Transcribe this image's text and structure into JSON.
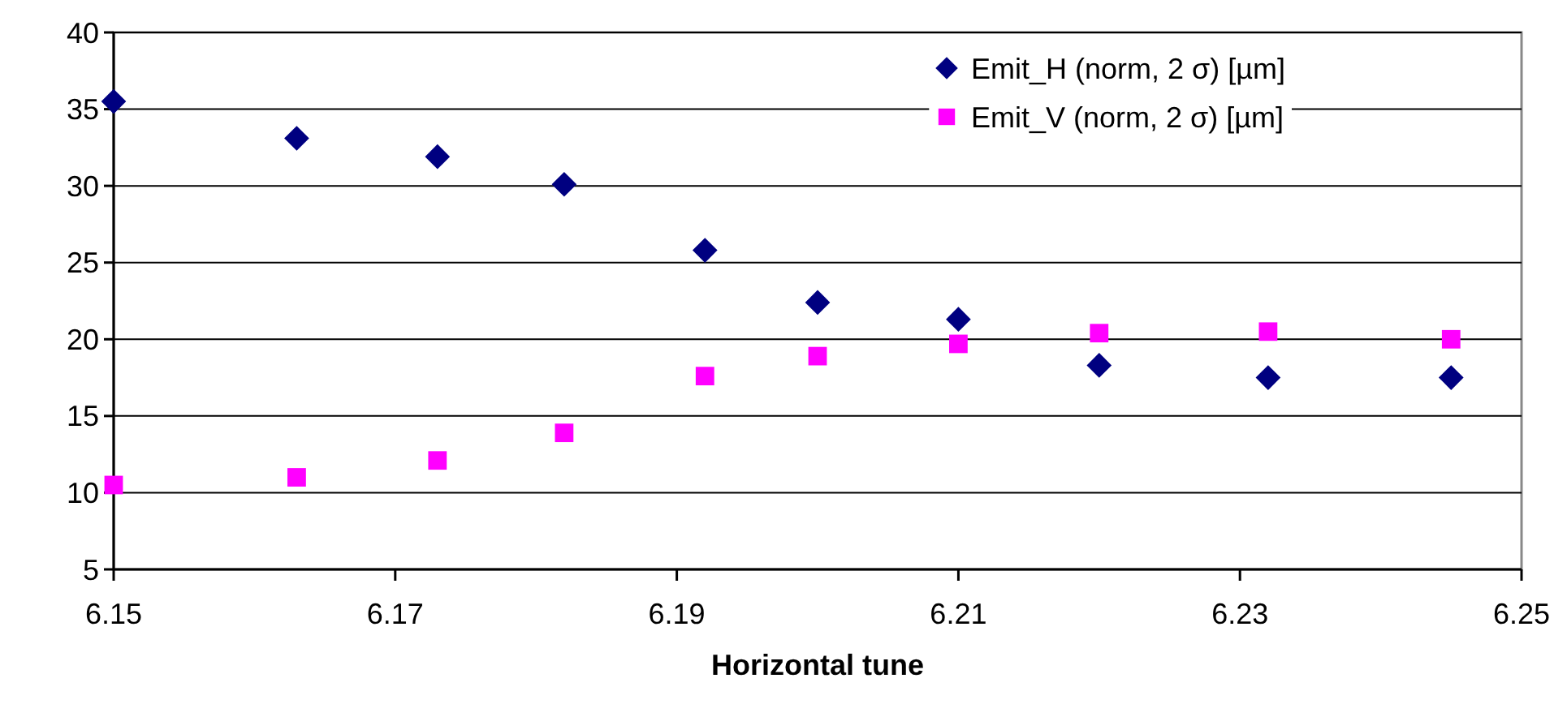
{
  "chart_data": {
    "type": "scatter",
    "xlabel": "Horizontal tune",
    "xlim": [
      6.15,
      6.25
    ],
    "xticks": [
      6.15,
      6.17,
      6.19,
      6.21,
      6.23,
      6.25
    ],
    "ylim": [
      5,
      40
    ],
    "yticks": [
      5,
      10,
      15,
      20,
      25,
      30,
      35,
      40
    ],
    "grid": "y",
    "legend": "top right",
    "series": [
      {
        "name": "Emit_H (norm, 2 σ) [µm]",
        "color": "#000080",
        "marker": "diamond",
        "x": [
          6.15,
          6.163,
          6.173,
          6.182,
          6.192,
          6.2,
          6.21,
          6.22,
          6.232,
          6.245
        ],
        "values": [
          35.5,
          33.1,
          31.9,
          30.1,
          25.8,
          22.4,
          21.3,
          18.3,
          17.5,
          17.5
        ]
      },
      {
        "name": "Emit_V (norm, 2 σ) [µm]",
        "color": "#ff00ff",
        "marker": "square",
        "x": [
          6.15,
          6.163,
          6.173,
          6.182,
          6.192,
          6.2,
          6.21,
          6.22,
          6.232,
          6.245
        ],
        "values": [
          10.5,
          11.0,
          12.1,
          13.9,
          17.6,
          18.9,
          19.7,
          20.4,
          20.5,
          20.0
        ]
      }
    ]
  }
}
